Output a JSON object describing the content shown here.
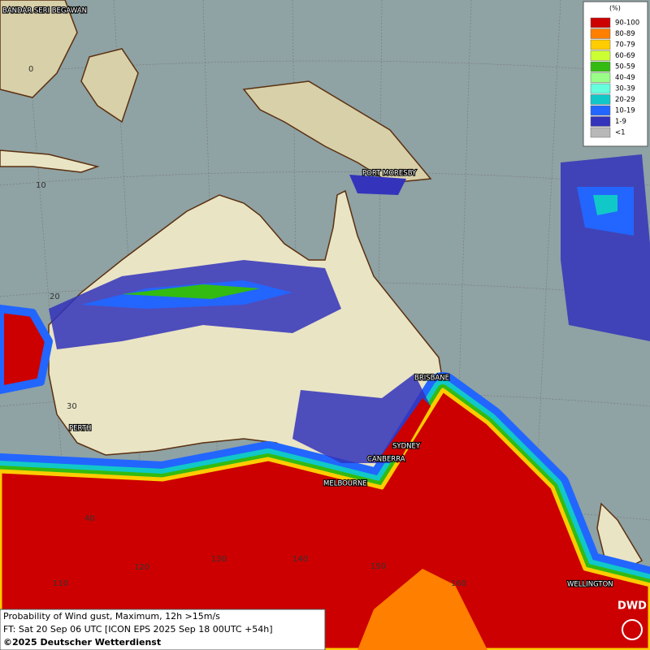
{
  "legend": {
    "title": "(%)",
    "items": [
      {
        "label": "90-100",
        "color": "#cc0000"
      },
      {
        "label": "80-89",
        "color": "#ff7f00"
      },
      {
        "label": "70-79",
        "color": "#ffcc00"
      },
      {
        "label": "60-69",
        "color": "#ccff33"
      },
      {
        "label": "50-59",
        "color": "#33bb11"
      },
      {
        "label": "40-49",
        "color": "#99ff88"
      },
      {
        "label": "30-39",
        "color": "#66ffdd"
      },
      {
        "label": "20-29",
        "color": "#11c8c8"
      },
      {
        "label": "10-19",
        "color": "#2266ff"
      },
      {
        "label": "1-9",
        "color": "#3333bb"
      },
      {
        "label": "<1",
        "color": "#b8b8b8"
      }
    ]
  },
  "places": [
    "BANDAR SERI BEGAWAN",
    "PORT MORESBY",
    "BRISBANE",
    "SYDNEY",
    "CANBERRA",
    "MELBOURNE",
    "PERTH",
    "WELLINGTON"
  ],
  "latitude_labels": [
    "0",
    "10",
    "20",
    "30",
    "40"
  ],
  "longitude_labels": [
    "110",
    "120",
    "130",
    "140",
    "150",
    "160"
  ],
  "footer": {
    "line1": "Probability of Wind gust, Maximum, 12h >15m/s",
    "line2": "FT: Sat 20 Sep 06 UTC [ICON EPS 2025 Sep 18 00UTC +54h]",
    "line3": "©2025 Deutscher Wetterdienst"
  },
  "logo": "DWD"
}
